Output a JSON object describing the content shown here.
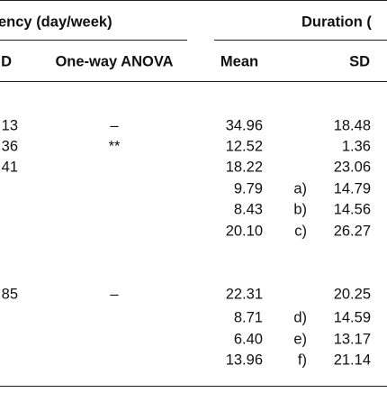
{
  "header": {
    "group1": "ency (day/week)",
    "group2": "Duration (",
    "columns": [
      "D",
      "One-way ANOVA",
      "Mean",
      "SD"
    ]
  },
  "table": {
    "rows": [
      {
        "c0": "13",
        "c1": "–",
        "c2": "34.96",
        "c4": "18.48"
      },
      {
        "c0": "36",
        "c1": "**",
        "c2": "12.52",
        "c4": "1.36"
      },
      {
        "c0": "41",
        "c2": "18.22",
        "c4": "23.06"
      },
      {
        "c2": "9.79",
        "c3": "a)",
        "c4": "14.79"
      },
      {
        "c2": "8.43",
        "c3": "b)",
        "c4": "14.56"
      },
      {
        "c2": "20.10",
        "c3": "c)",
        "c4": "26.27"
      },
      {
        "c0": "85",
        "c1": "–",
        "c2": "22.31",
        "c4": "20.25"
      },
      {
        "c2": "8.71",
        "c3": "d)",
        "c4": "14.59"
      },
      {
        "c2": "6.40",
        "c3": "e)",
        "c4": "13.17"
      },
      {
        "c2": "13.96",
        "c3": "f)",
        "c4": "21.14"
      }
    ]
  }
}
